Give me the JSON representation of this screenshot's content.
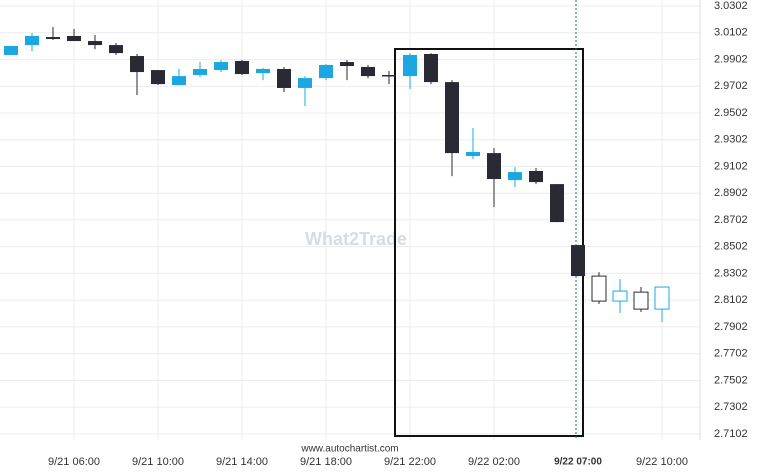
{
  "chart_data": {
    "type": "candlestick",
    "watermark": "What2Trade",
    "source": "www.autochartist.com",
    "categories": [
      null,
      null,
      null,
      "9/21 06:00",
      null,
      null,
      null,
      "9/21 10:00",
      null,
      null,
      null,
      "9/21 14:00",
      null,
      null,
      null,
      "9/21 18:00",
      null,
      null,
      null,
      "9/21 22:00",
      null,
      null,
      null,
      "9/22 02:00",
      null,
      null,
      null,
      "9/22 07:00",
      null,
      null,
      null,
      "9/22 10:00"
    ],
    "open": [
      2.9936,
      3.001,
      3.007,
      3.0078,
      3.004,
      3.001,
      2.9928,
      2.9823,
      2.9711,
      2.9786,
      2.9823,
      2.9891,
      2.9801,
      2.9831,
      2.9689,
      2.9763,
      2.9883,
      2.9846,
      2.9786,
      2.9778,
      2.9943,
      2.9733,
      2.918,
      2.9202,
      2.9,
      2.9068,
      2.897,
      2.8514,
      2.8282,
      2.8095,
      2.8162,
      2.8035
    ],
    "high": [
      3.0003,
      3.01,
      3.0145,
      3.013,
      3.0085,
      3.0025,
      2.9943,
      2.9823,
      2.9831,
      2.9883,
      2.9898,
      2.9898,
      2.9838,
      2.9846,
      2.9778,
      2.9868,
      2.9898,
      2.9861,
      2.9816,
      2.995,
      2.995,
      2.9748,
      2.9389,
      2.924,
      2.9097,
      2.909,
      2.897,
      2.8514,
      2.8312,
      2.826,
      2.82,
      2.82
    ],
    "low": [
      2.9936,
      2.9965,
      3.0048,
      3.004,
      2.998,
      2.9936,
      2.9636,
      2.9711,
      2.9711,
      2.9771,
      2.9808,
      2.9786,
      2.9748,
      2.9659,
      2.9554,
      2.9748,
      2.9748,
      2.9763,
      2.9718,
      2.9681,
      2.9718,
      2.903,
      2.9157,
      2.8798,
      2.8948,
      2.897,
      2.8686,
      2.8282,
      2.8073,
      2.8005,
      2.8013,
      2.7938
    ],
    "close": [
      3.0003,
      3.0078,
      3.0055,
      3.004,
      3.001,
      2.995,
      2.9808,
      2.9718,
      2.9778,
      2.9831,
      2.9883,
      2.9793,
      2.9831,
      2.9689,
      2.9763,
      2.9861,
      2.9853,
      2.9778,
      2.9778,
      2.9936,
      2.9733,
      2.9202,
      2.921,
      2.9008,
      2.906,
      2.8985,
      2.8686,
      2.8282,
      2.8095,
      2.817,
      2.8035,
      2.82
    ],
    "hollow": [
      false,
      false,
      false,
      false,
      false,
      false,
      false,
      false,
      false,
      false,
      false,
      false,
      false,
      false,
      false,
      false,
      false,
      false,
      false,
      false,
      false,
      false,
      false,
      false,
      false,
      false,
      false,
      false,
      true,
      true,
      true,
      true
    ],
    "up_color": "#1ba8e0",
    "down_color": "#2a2a35",
    "highlighted_index": 27,
    "ylim": [
      2.7056,
      3.0347
    ],
    "yticks": [
      2.7102,
      2.7302,
      2.7502,
      2.7702,
      2.7902,
      2.8102,
      2.8302,
      2.8502,
      2.8702,
      2.8902,
      2.9102,
      2.9302,
      2.9502,
      2.9702,
      2.9902,
      3.0102,
      3.0302
    ],
    "grid": true
  }
}
